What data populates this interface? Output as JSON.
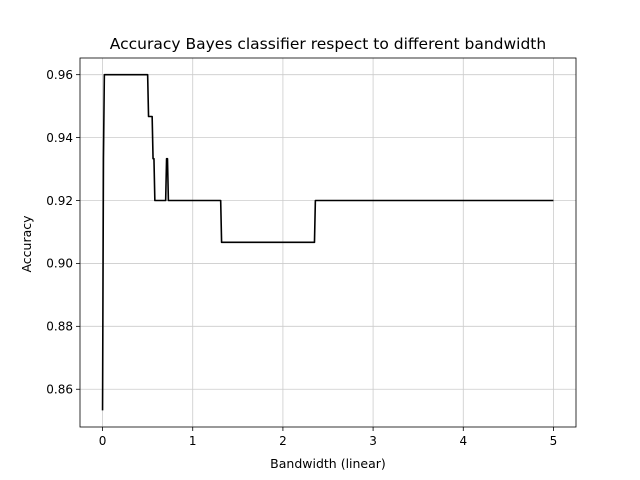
{
  "chart_data": {
    "type": "line",
    "title": "Accuracy Bayes classifier respect to different bandwidth",
    "xlabel": "Bandwidth (linear)",
    "ylabel": "Accuracy",
    "xlim": [
      -0.25,
      5.25
    ],
    "ylim": [
      0.848,
      0.9653
    ],
    "xticks": [
      0,
      1,
      2,
      3,
      4,
      5
    ],
    "xtick_labels": [
      "0",
      "1",
      "2",
      "3",
      "4",
      "5"
    ],
    "yticks": [
      0.86,
      0.88,
      0.9,
      0.92,
      0.94,
      0.96
    ],
    "ytick_labels": [
      "0.86",
      "0.88",
      "0.90",
      "0.92",
      "0.94",
      "0.96"
    ],
    "grid": true,
    "line_color": "#000000",
    "grid_color": "#cccccc",
    "series": [
      {
        "x": [
          0.0,
          0.01,
          0.02,
          0.03,
          0.04,
          0.5,
          0.51,
          0.55,
          0.56,
          0.57,
          0.58,
          0.6,
          0.7,
          0.71,
          0.72,
          0.73,
          0.74,
          0.75,
          1.31,
          1.32,
          2.35,
          2.36,
          5.0
        ],
        "y": [
          0.8533,
          0.9333,
          0.96,
          0.96,
          0.96,
          0.96,
          0.9467,
          0.9467,
          0.9333,
          0.9333,
          0.92,
          0.92,
          0.92,
          0.9333,
          0.9333,
          0.92,
          0.92,
          0.92,
          0.92,
          0.9067,
          0.9067,
          0.92,
          0.92
        ]
      }
    ]
  }
}
